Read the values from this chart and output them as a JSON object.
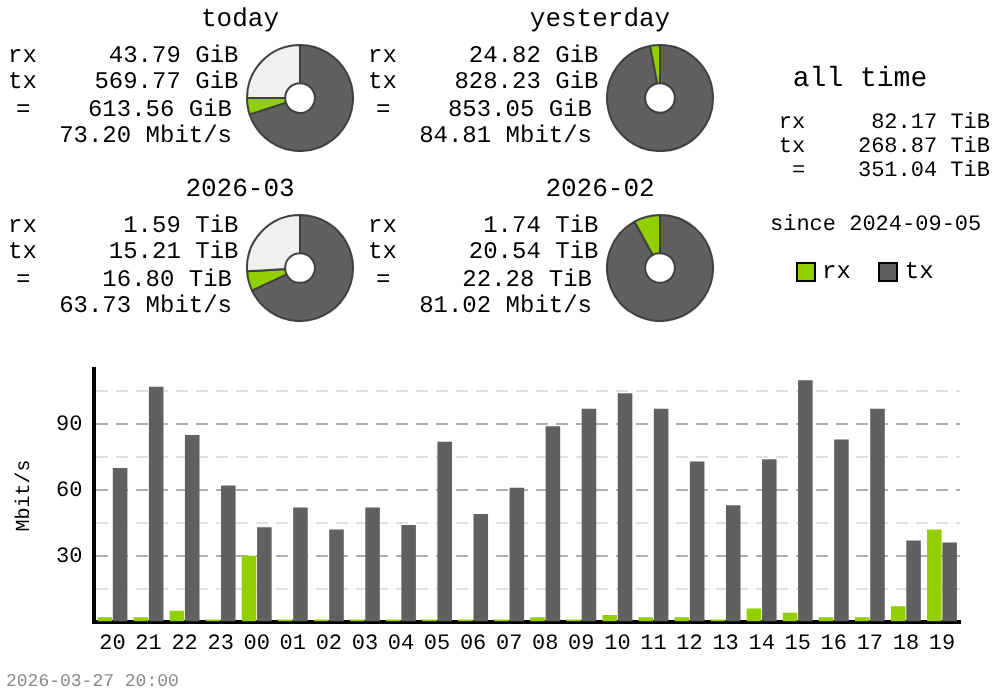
{
  "chart_data": [
    {
      "type": "donut",
      "title": "today",
      "annotations": [
        "rx     43.79 GiB",
        "tx    569.77 GiB",
        "=    613.56 GiB",
        "73.20 Mbit/s"
      ],
      "categories": [
        null,
        null,
        null
      ],
      "values": [
        70,
        5,
        25
      ],
      "colors": [
        "#606060",
        "#92cf00",
        "#f0f0f0"
      ]
    },
    {
      "type": "donut",
      "title": "yesterday",
      "annotations": [
        "rx     24.82 GiB",
        "tx    828.23 GiB",
        "=    853.05 GiB",
        "84.81 Mbit/s"
      ],
      "categories": [
        null,
        null
      ],
      "values": [
        97,
        3
      ],
      "colors": [
        "#606060",
        "#92cf00"
      ]
    },
    {
      "type": "donut",
      "title": "2026-03",
      "annotations": [
        "rx      1.59 TiB",
        "tx     15.21 TiB",
        "=     16.80 TiB",
        "63.73 Mbit/s"
      ],
      "categories": [
        null,
        null,
        null
      ],
      "values": [
        68,
        6,
        26
      ],
      "colors": [
        "#606060",
        "#92cf00",
        "#f0f0f0"
      ]
    },
    {
      "type": "donut",
      "title": "2026-02",
      "annotations": [
        "rx      1.74 TiB",
        "tx     20.54 TiB",
        "=     22.28 TiB",
        "81.02 Mbit/s"
      ],
      "categories": [
        null,
        null
      ],
      "values": [
        92,
        8
      ],
      "colors": [
        "#606060",
        "#92cf00"
      ]
    },
    {
      "type": "other",
      "title": "all time",
      "annotations": [
        "rx     82.17 TiB",
        "tx    268.87 TiB",
        "=    351.04 TiB",
        "since 2024-09-05"
      ]
    },
    {
      "type": "bar",
      "categories": [
        "20",
        "21",
        "22",
        "23",
        "00",
        "01",
        "02",
        "03",
        "04",
        "05",
        "06",
        "07",
        "08",
        "09",
        "10",
        "11",
        "12",
        "13",
        "14",
        "15",
        "16",
        "17",
        "18",
        "19"
      ],
      "series": [
        {
          "name": "rx",
          "color": "#92cf00",
          "values": [
            2,
            2,
            5,
            1,
            30,
            1,
            1,
            1,
            1,
            1,
            1,
            1,
            2,
            1,
            3,
            2,
            2,
            1,
            6,
            4,
            2,
            2,
            7,
            42
          ]
        },
        {
          "name": "tx",
          "color": "#606060",
          "values": [
            70,
            107,
            85,
            62,
            43,
            52,
            42,
            52,
            44,
            82,
            49,
            61,
            89,
            97,
            104,
            97,
            73,
            53,
            74,
            110,
            83,
            97,
            37,
            36
          ]
        }
      ],
      "ylabel": "Mbit/s",
      "ylim": [
        0,
        115
      ],
      "yticks": [
        {
          "value": 15,
          "label": null
        },
        30,
        {
          "value": 45,
          "label": null
        },
        60,
        {
          "value": 75,
          "label": null
        },
        90,
        {
          "value": 105,
          "label": null
        }
      ],
      "grid": "y",
      "legend": "top right",
      "annotations": [
        "2026-03-27 20:00"
      ]
    }
  ]
}
